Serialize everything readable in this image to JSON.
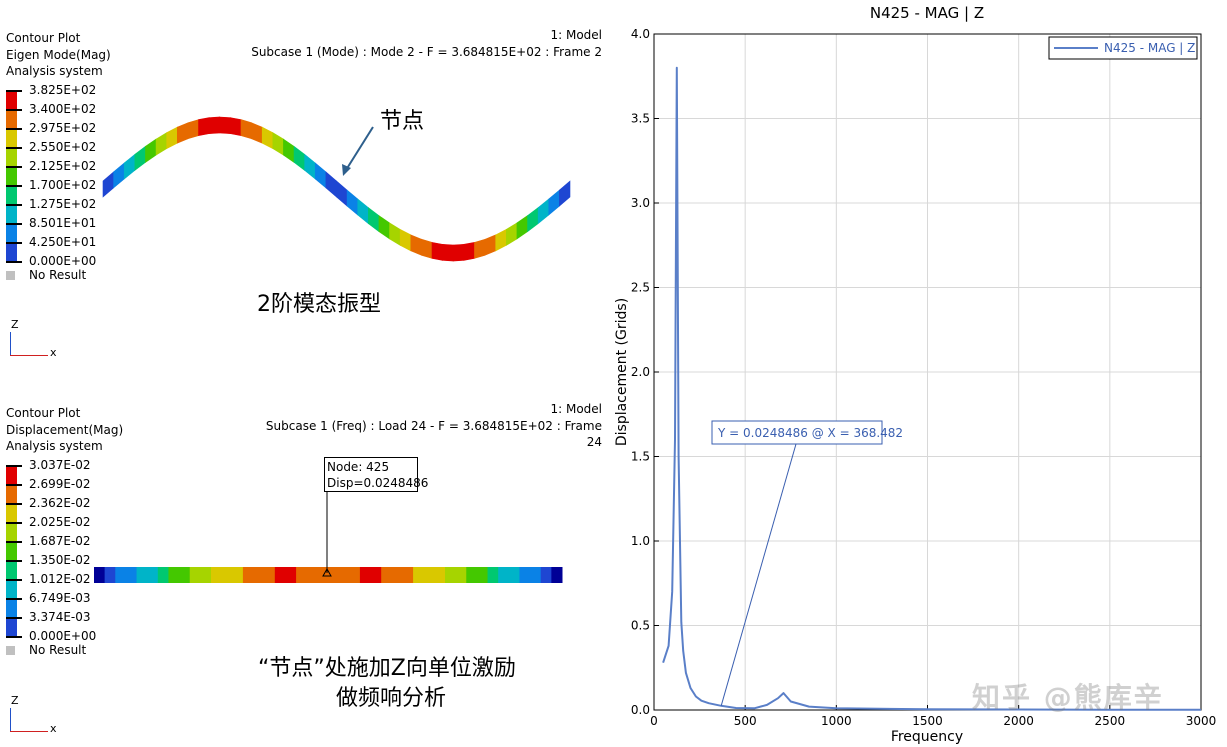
{
  "top_panel": {
    "title_lines": [
      "Contour Plot",
      "Eigen Mode(Mag)",
      "Analysis system"
    ],
    "model": "1: Model",
    "subcase": "Subcase 1 (Mode) : Mode 2 - F = 3.684815E+02 : Frame 2",
    "legend": [
      "3.825E+02",
      "3.400E+02",
      "2.975E+02",
      "2.550E+02",
      "2.125E+02",
      "1.700E+02",
      "1.275E+02",
      "8.501E+01",
      "4.250E+01",
      "0.000E+00"
    ],
    "no_result": "No Result",
    "annotation_node": "节点",
    "caption": "2阶模态振型",
    "axis_z": "Z",
    "axis_x": "x"
  },
  "bottom_panel": {
    "title_lines": [
      "Contour Plot",
      "Displacement(Mag)",
      "Analysis system"
    ],
    "model": "1: Model",
    "subcase": "Subcase 1 (Freq) : Load 24 - F = 3.684815E+02 : Frame 24",
    "legend": [
      "3.037E-02",
      "2.699E-02",
      "2.362E-02",
      "2.025E-02",
      "1.687E-02",
      "1.350E-02",
      "1.012E-02",
      "6.749E-03",
      "3.374E-03",
      "0.000E+00"
    ],
    "no_result": "No Result",
    "node_label": "Node: 425",
    "disp_label": "Disp=0.0248486",
    "caption_line1": "“节点”处施加Z向单位激励",
    "caption_line2": "做频响分析",
    "axis_z": "Z",
    "axis_x": "x"
  },
  "legend_colors": [
    "#e00000",
    "#e66a00",
    "#d9c800",
    "#a6d400",
    "#44c800",
    "#00c870",
    "#00b4c8",
    "#0a82e6",
    "#1e46d2",
    "#000096"
  ],
  "chart_data": {
    "type": "line",
    "title": "N425 - MAG | Z",
    "xlabel": "Frequency",
    "ylabel": "Displacement (Grids)",
    "xlim": [
      0,
      3000
    ],
    "ylim": [
      0,
      4.0
    ],
    "x_ticks": [
      "0",
      "500",
      "1000",
      "1500",
      "2000",
      "2500",
      "3000"
    ],
    "y_ticks": [
      "0.0",
      "0.5",
      "1.0",
      "1.5",
      "2.0",
      "2.5",
      "3.0",
      "3.5",
      "4.0"
    ],
    "grid": true,
    "legend_position": "top-right",
    "series": [
      {
        "name": "N425 - MAG | Z",
        "color": "#5a7fc8",
        "x": [
          50,
          80,
          100,
          115,
          125,
          135,
          150,
          160,
          175,
          200,
          230,
          260,
          300,
          368,
          450,
          550,
          620,
          680,
          710,
          750,
          850,
          1000,
          1500,
          2000,
          2500,
          3000
        ],
        "y": [
          0.28,
          0.38,
          0.7,
          1.6,
          3.8,
          1.5,
          0.52,
          0.35,
          0.22,
          0.13,
          0.08,
          0.055,
          0.04,
          0.025,
          0.012,
          0.01,
          0.03,
          0.07,
          0.1,
          0.05,
          0.02,
          0.01,
          0.005,
          0.003,
          0.002,
          0.001
        ]
      }
    ],
    "annotation": {
      "text": "Y = 0.0248486 @ X = 368.482",
      "x": 368.482,
      "y": 0.0248486
    }
  },
  "watermark": "知乎 @熊库辛"
}
